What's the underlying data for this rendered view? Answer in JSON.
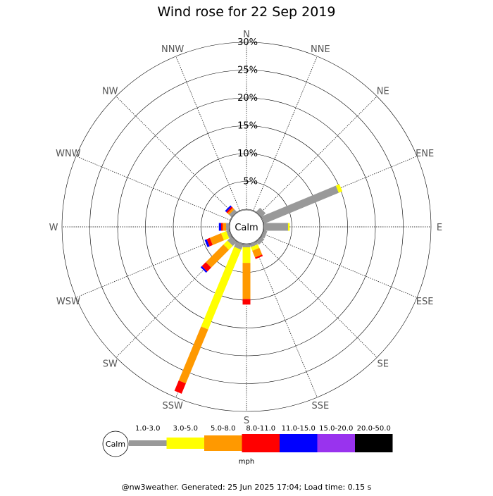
{
  "chart_data": {
    "type": "wind-rose",
    "title": "Wind rose for 22 Sep 2019",
    "rings": [
      5,
      10,
      15,
      20,
      25,
      30
    ],
    "ring_labels": [
      "5%",
      "10%",
      "15%",
      "20%",
      "25%",
      "30%"
    ],
    "rmax": 30,
    "directions": [
      "N",
      "NNE",
      "NE",
      "ENE",
      "E",
      "ESE",
      "SE",
      "SSE",
      "S",
      "SSW",
      "SW",
      "WSW",
      "W",
      "WNW",
      "NW",
      "NNW"
    ],
    "calm_label": "Calm",
    "speed_bins": [
      {
        "label": "1.0-3.0",
        "color": "#999999"
      },
      {
        "label": "3.0-5.0",
        "color": "#ffff00"
      },
      {
        "label": "5.0-8.0",
        "color": "#ff9900"
      },
      {
        "label": "8.0-11.0",
        "color": "#ff0000"
      },
      {
        "label": "11.0-15.0",
        "color": "#0000ff"
      },
      {
        "label": "15.0-20.0",
        "color": "#9933ee"
      },
      {
        "label": "20.0-50.0",
        "color": "#000000"
      }
    ],
    "units": "mph",
    "series": [
      {
        "direction": "N",
        "values": [
          0,
          0,
          0,
          0,
          0,
          0,
          0
        ]
      },
      {
        "direction": "NNE",
        "values": [
          0,
          0,
          0,
          0,
          0,
          0,
          0
        ]
      },
      {
        "direction": "NE",
        "values": [
          1.0,
          0,
          0,
          0,
          0,
          0,
          0
        ]
      },
      {
        "direction": "ENE",
        "values": [
          14.5,
          0.7,
          0,
          0,
          0,
          0,
          0
        ]
      },
      {
        "direction": "E",
        "values": [
          4.3,
          0.3,
          0,
          0,
          0,
          0,
          0
        ]
      },
      {
        "direction": "ESE",
        "values": [
          0.6,
          0,
          0,
          0,
          0,
          0,
          0
        ]
      },
      {
        "direction": "SE",
        "values": [
          0.7,
          0,
          0,
          0,
          0,
          0,
          0
        ]
      },
      {
        "direction": "SSE",
        "values": [
          0.5,
          0.7,
          1.3,
          0.3,
          0,
          0,
          0
        ]
      },
      {
        "direction": "S",
        "values": [
          0.5,
          2.8,
          6.5,
          1.0,
          0,
          0,
          0
        ]
      },
      {
        "direction": "SSW",
        "values": [
          1.0,
          15.5,
          10.5,
          2.0,
          0,
          0,
          0
        ]
      },
      {
        "direction": "SW",
        "values": [
          1.0,
          1.0,
          4.5,
          1.0,
          0.3,
          0,
          0
        ]
      },
      {
        "direction": "WSW",
        "values": [
          0.5,
          1.0,
          2.2,
          0.6,
          0.4,
          0,
          0
        ]
      },
      {
        "direction": "W",
        "values": [
          0.5,
          0,
          0.6,
          0.3,
          0.4,
          0,
          0
        ]
      },
      {
        "direction": "WNW",
        "values": [
          0,
          0,
          0,
          0,
          0,
          0,
          0
        ]
      },
      {
        "direction": "NW",
        "values": [
          0.6,
          0,
          0.4,
          0.3,
          0.3,
          0,
          0
        ]
      },
      {
        "direction": "NNW",
        "values": [
          0,
          0,
          0,
          0,
          0,
          0,
          0
        ]
      }
    ],
    "grid": true
  },
  "footer": "@nw3weather. Generated: 25 Jun 2025 17:04; Load time: 0.15 s"
}
